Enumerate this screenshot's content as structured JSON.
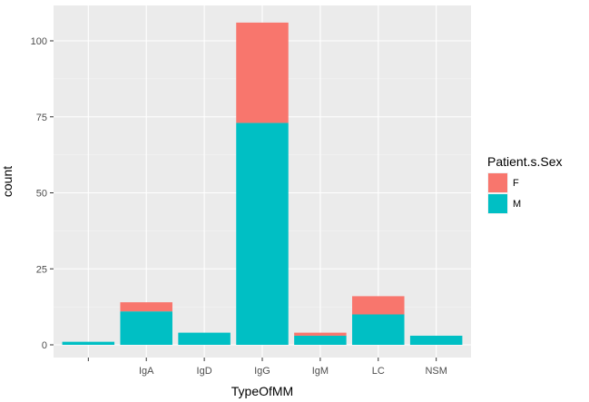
{
  "chart_data": {
    "type": "bar",
    "stacked": true,
    "xlabel": "TypeOfMM",
    "ylabel": "count",
    "categories": [
      "",
      "IgA",
      "IgD",
      "IgG",
      "IgM",
      "LC",
      "NSM"
    ],
    "series": [
      {
        "name": "F",
        "color": "#F8766D",
        "values": [
          0,
          3,
          0,
          33,
          1,
          6,
          0
        ]
      },
      {
        "name": "M",
        "color": "#00BFC4",
        "values": [
          1,
          11,
          4,
          73,
          3,
          10,
          3
        ]
      }
    ],
    "ylim": [
      0,
      110
    ],
    "yticks": [
      0,
      25,
      50,
      75,
      100
    ],
    "grid": true,
    "legend": {
      "title": "Patient.s.Sex",
      "placement": "right"
    },
    "panel_color": "#EBEBEB"
  }
}
